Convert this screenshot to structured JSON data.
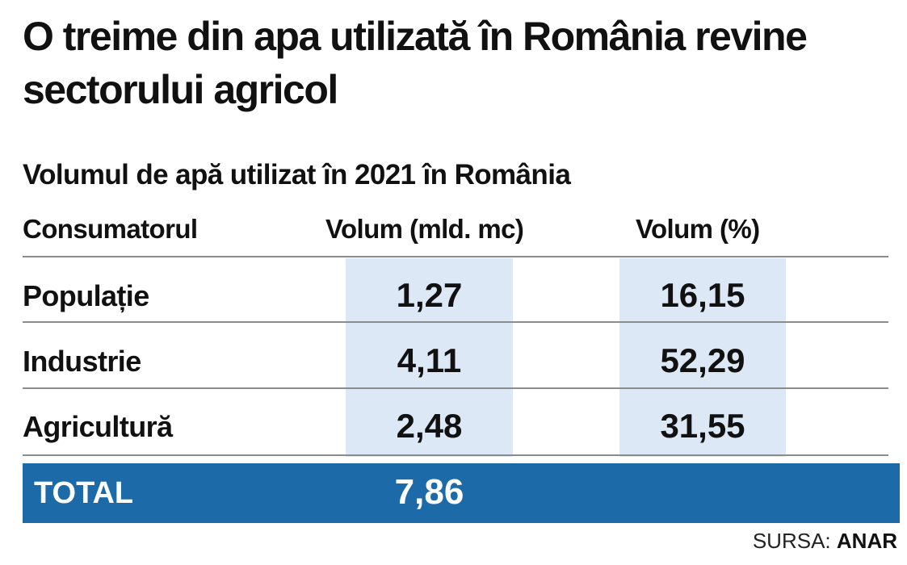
{
  "chart_data": {
    "type": "table",
    "title": "O treime din apa utilizată în România revine sectorului agricol",
    "subtitle": "Volumul de apă utilizat în 2021 în România",
    "columns": [
      "Consumatorul",
      "Volum (mld. mc)",
      "Volum (%)"
    ],
    "rows": [
      {
        "consumer": "Populație",
        "volume": "1,27",
        "percent": "16,15"
      },
      {
        "consumer": "Industrie",
        "volume": "4,11",
        "percent": "52,29"
      },
      {
        "consumer": "Agricultură",
        "volume": "2,48",
        "percent": "31,55"
      }
    ],
    "total": {
      "label": "TOTAL",
      "volume": "7,86"
    },
    "source": {
      "prefix": "SURSA:",
      "name": "ANAR"
    }
  },
  "colors": {
    "column_highlight": "#dce8f5",
    "total_bar": "#1d6aa8",
    "total_text": "#ffffff",
    "rule": "#8c8c8c"
  }
}
